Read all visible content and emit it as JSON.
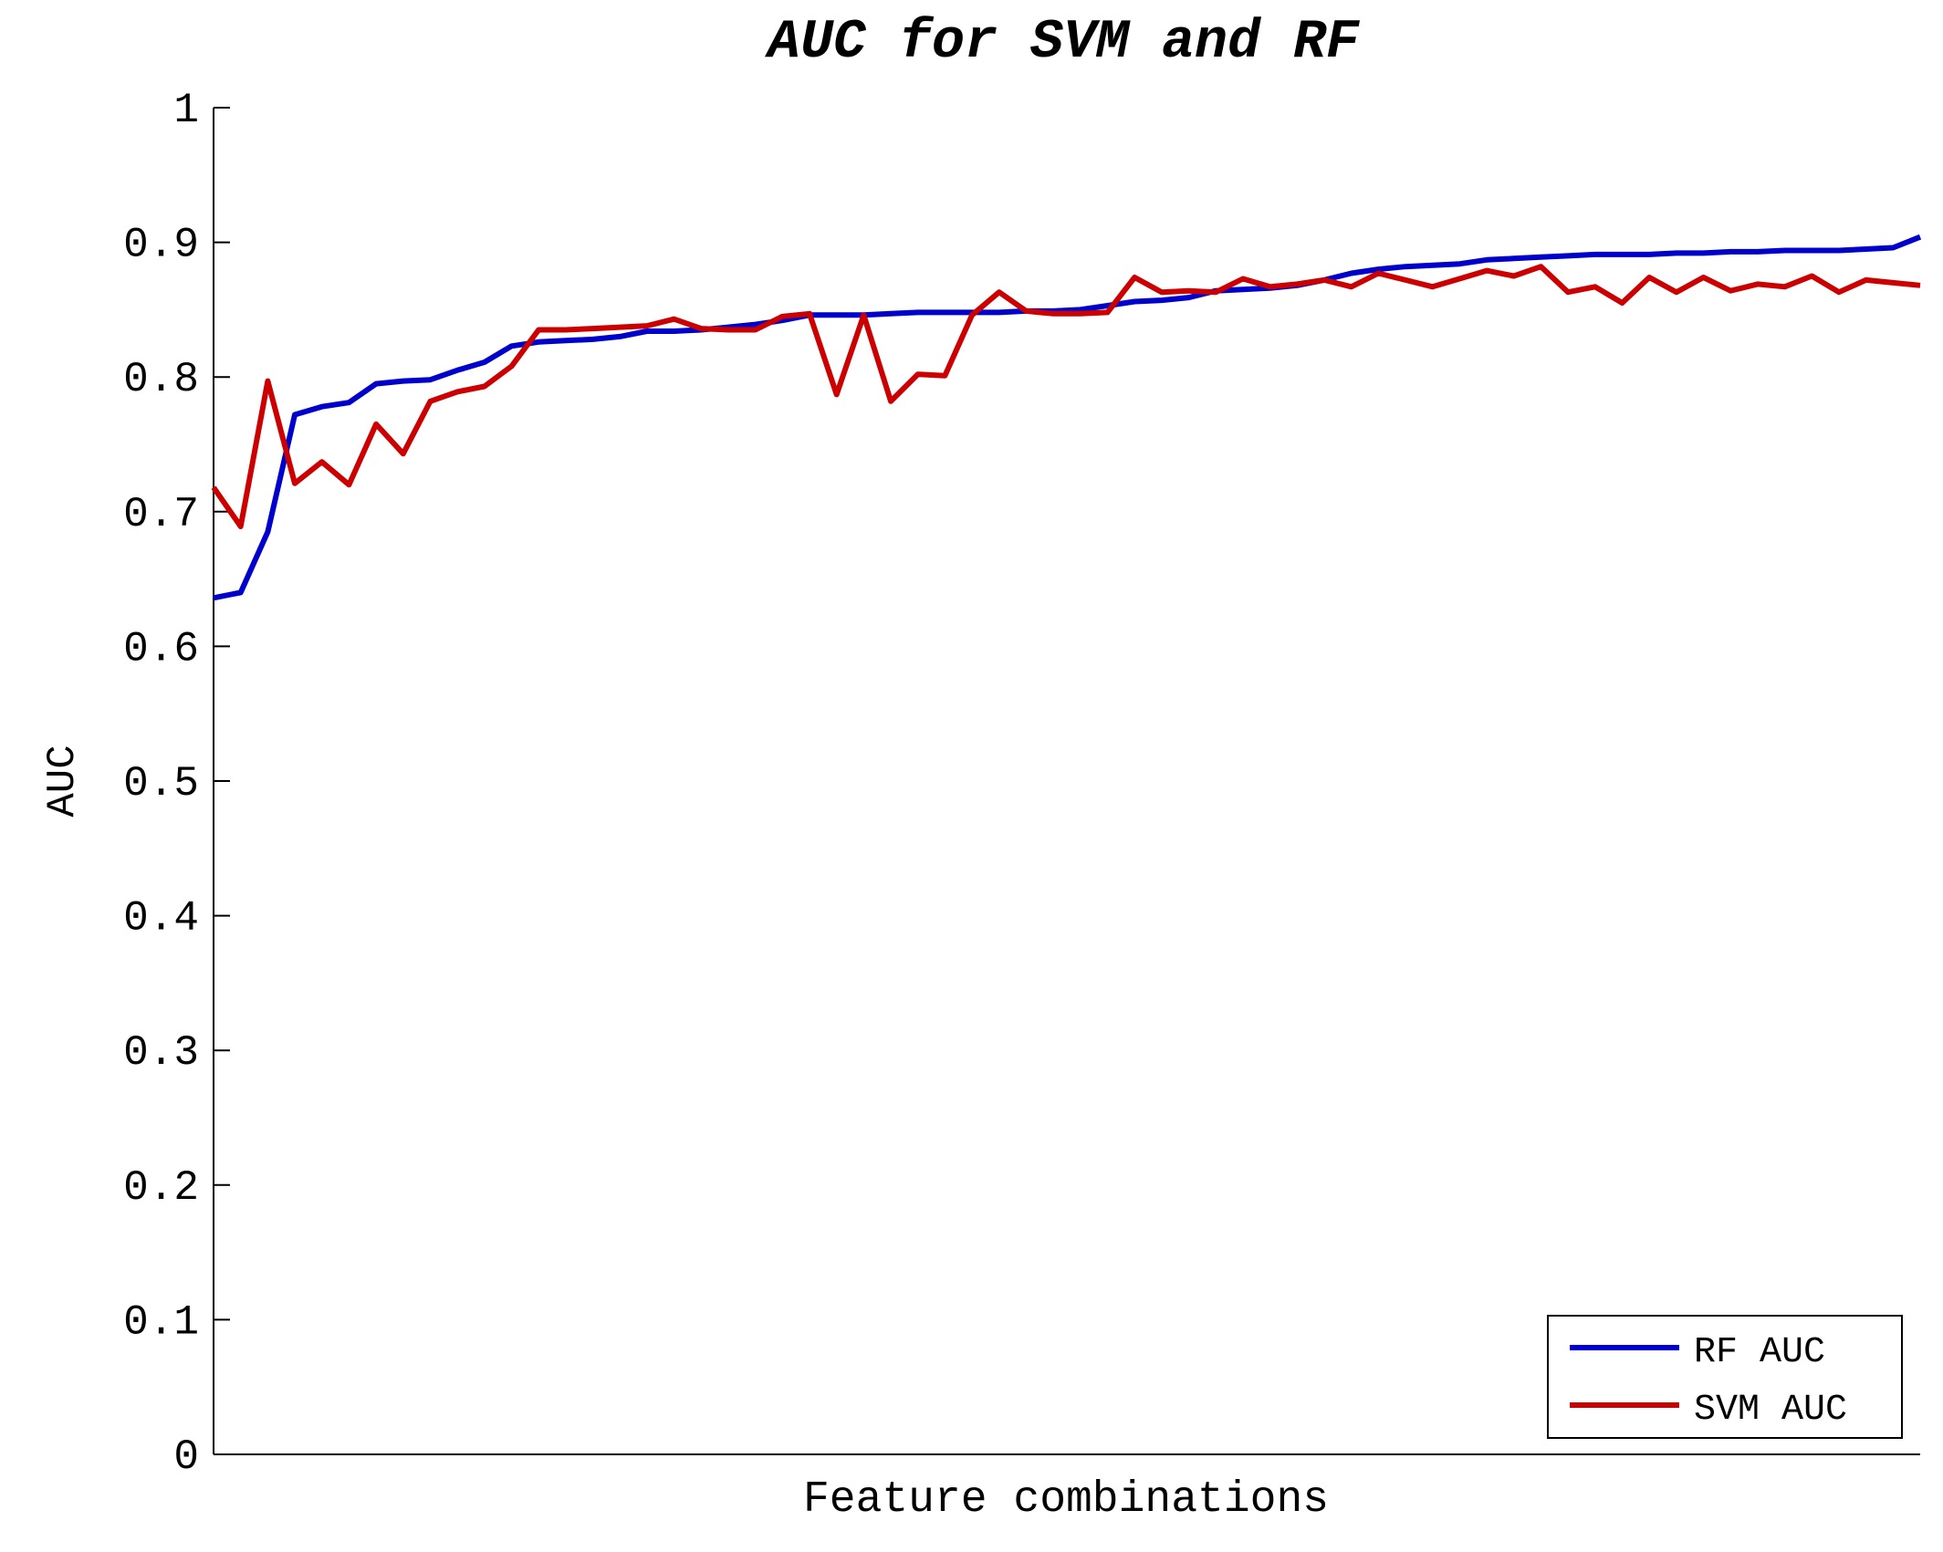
{
  "chart_data": {
    "type": "line",
    "title": "AUC for SVM and RF",
    "xlabel": "Feature combinations",
    "ylabel": "AUC",
    "ylim": [
      0,
      1
    ],
    "yticks": [
      "0",
      "0.1",
      "0.2",
      "0.3",
      "0.4",
      "0.5",
      "0.6",
      "0.7",
      "0.8",
      "0.9",
      "1"
    ],
    "xticks": [],
    "grid": false,
    "legend_position": "bottom-right",
    "series": [
      {
        "name": "RF AUC",
        "color": "#0000cc",
        "x": [
          1,
          2,
          3,
          4,
          5,
          6,
          7,
          8,
          9,
          10,
          11,
          12,
          13,
          14,
          15,
          16,
          17,
          18,
          19,
          20,
          21,
          22,
          23,
          24,
          25,
          26,
          27,
          28,
          29,
          30,
          31,
          32,
          33,
          34,
          35,
          36,
          37,
          38,
          39,
          40,
          41,
          42,
          43,
          44,
          45,
          46,
          47,
          48,
          49,
          50,
          51,
          52,
          53,
          54,
          55,
          56,
          57,
          58,
          59,
          60,
          61,
          62,
          63,
          64
        ],
        "values": [
          0.636,
          0.64,
          0.685,
          0.772,
          0.778,
          0.781,
          0.795,
          0.797,
          0.798,
          0.805,
          0.811,
          0.823,
          0.826,
          0.827,
          0.828,
          0.83,
          0.834,
          0.834,
          0.835,
          0.837,
          0.839,
          0.842,
          0.846,
          0.846,
          0.846,
          0.847,
          0.848,
          0.848,
          0.848,
          0.848,
          0.849,
          0.849,
          0.85,
          0.853,
          0.856,
          0.857,
          0.859,
          0.864,
          0.865,
          0.866,
          0.868,
          0.872,
          0.877,
          0.88,
          0.882,
          0.883,
          0.884,
          0.887,
          0.888,
          0.889,
          0.89,
          0.891,
          0.891,
          0.891,
          0.892,
          0.892,
          0.893,
          0.893,
          0.894,
          0.894,
          0.894,
          0.895,
          0.896,
          0.904
        ]
      },
      {
        "name": "SVM AUC",
        "color": "#cc0000",
        "x": [
          1,
          2,
          3,
          4,
          5,
          6,
          7,
          8,
          9,
          10,
          11,
          12,
          13,
          14,
          15,
          16,
          17,
          18,
          19,
          20,
          21,
          22,
          23,
          24,
          25,
          26,
          27,
          28,
          29,
          30,
          31,
          32,
          33,
          34,
          35,
          36,
          37,
          38,
          39,
          40,
          41,
          42,
          43,
          44,
          45,
          46,
          47,
          48,
          49,
          50,
          51,
          52,
          53,
          54,
          55,
          56,
          57,
          58,
          59,
          60,
          61,
          62,
          63,
          64
        ],
        "values": [
          0.718,
          0.689,
          0.797,
          0.721,
          0.737,
          0.72,
          0.765,
          0.743,
          0.782,
          0.789,
          0.793,
          0.808,
          0.835,
          0.835,
          0.836,
          0.837,
          0.838,
          0.843,
          0.836,
          0.835,
          0.835,
          0.845,
          0.847,
          0.787,
          0.846,
          0.782,
          0.802,
          0.801,
          0.846,
          0.863,
          0.849,
          0.847,
          0.847,
          0.848,
          0.874,
          0.863,
          0.864,
          0.863,
          0.873,
          0.867,
          0.869,
          0.872,
          0.867,
          0.877,
          0.872,
          0.867,
          0.873,
          0.879,
          0.875,
          0.882,
          0.863,
          0.867,
          0.855,
          0.874,
          0.863,
          0.874,
          0.864,
          0.869,
          0.867,
          0.875,
          0.863,
          0.872,
          0.87,
          0.868
        ]
      }
    ]
  }
}
